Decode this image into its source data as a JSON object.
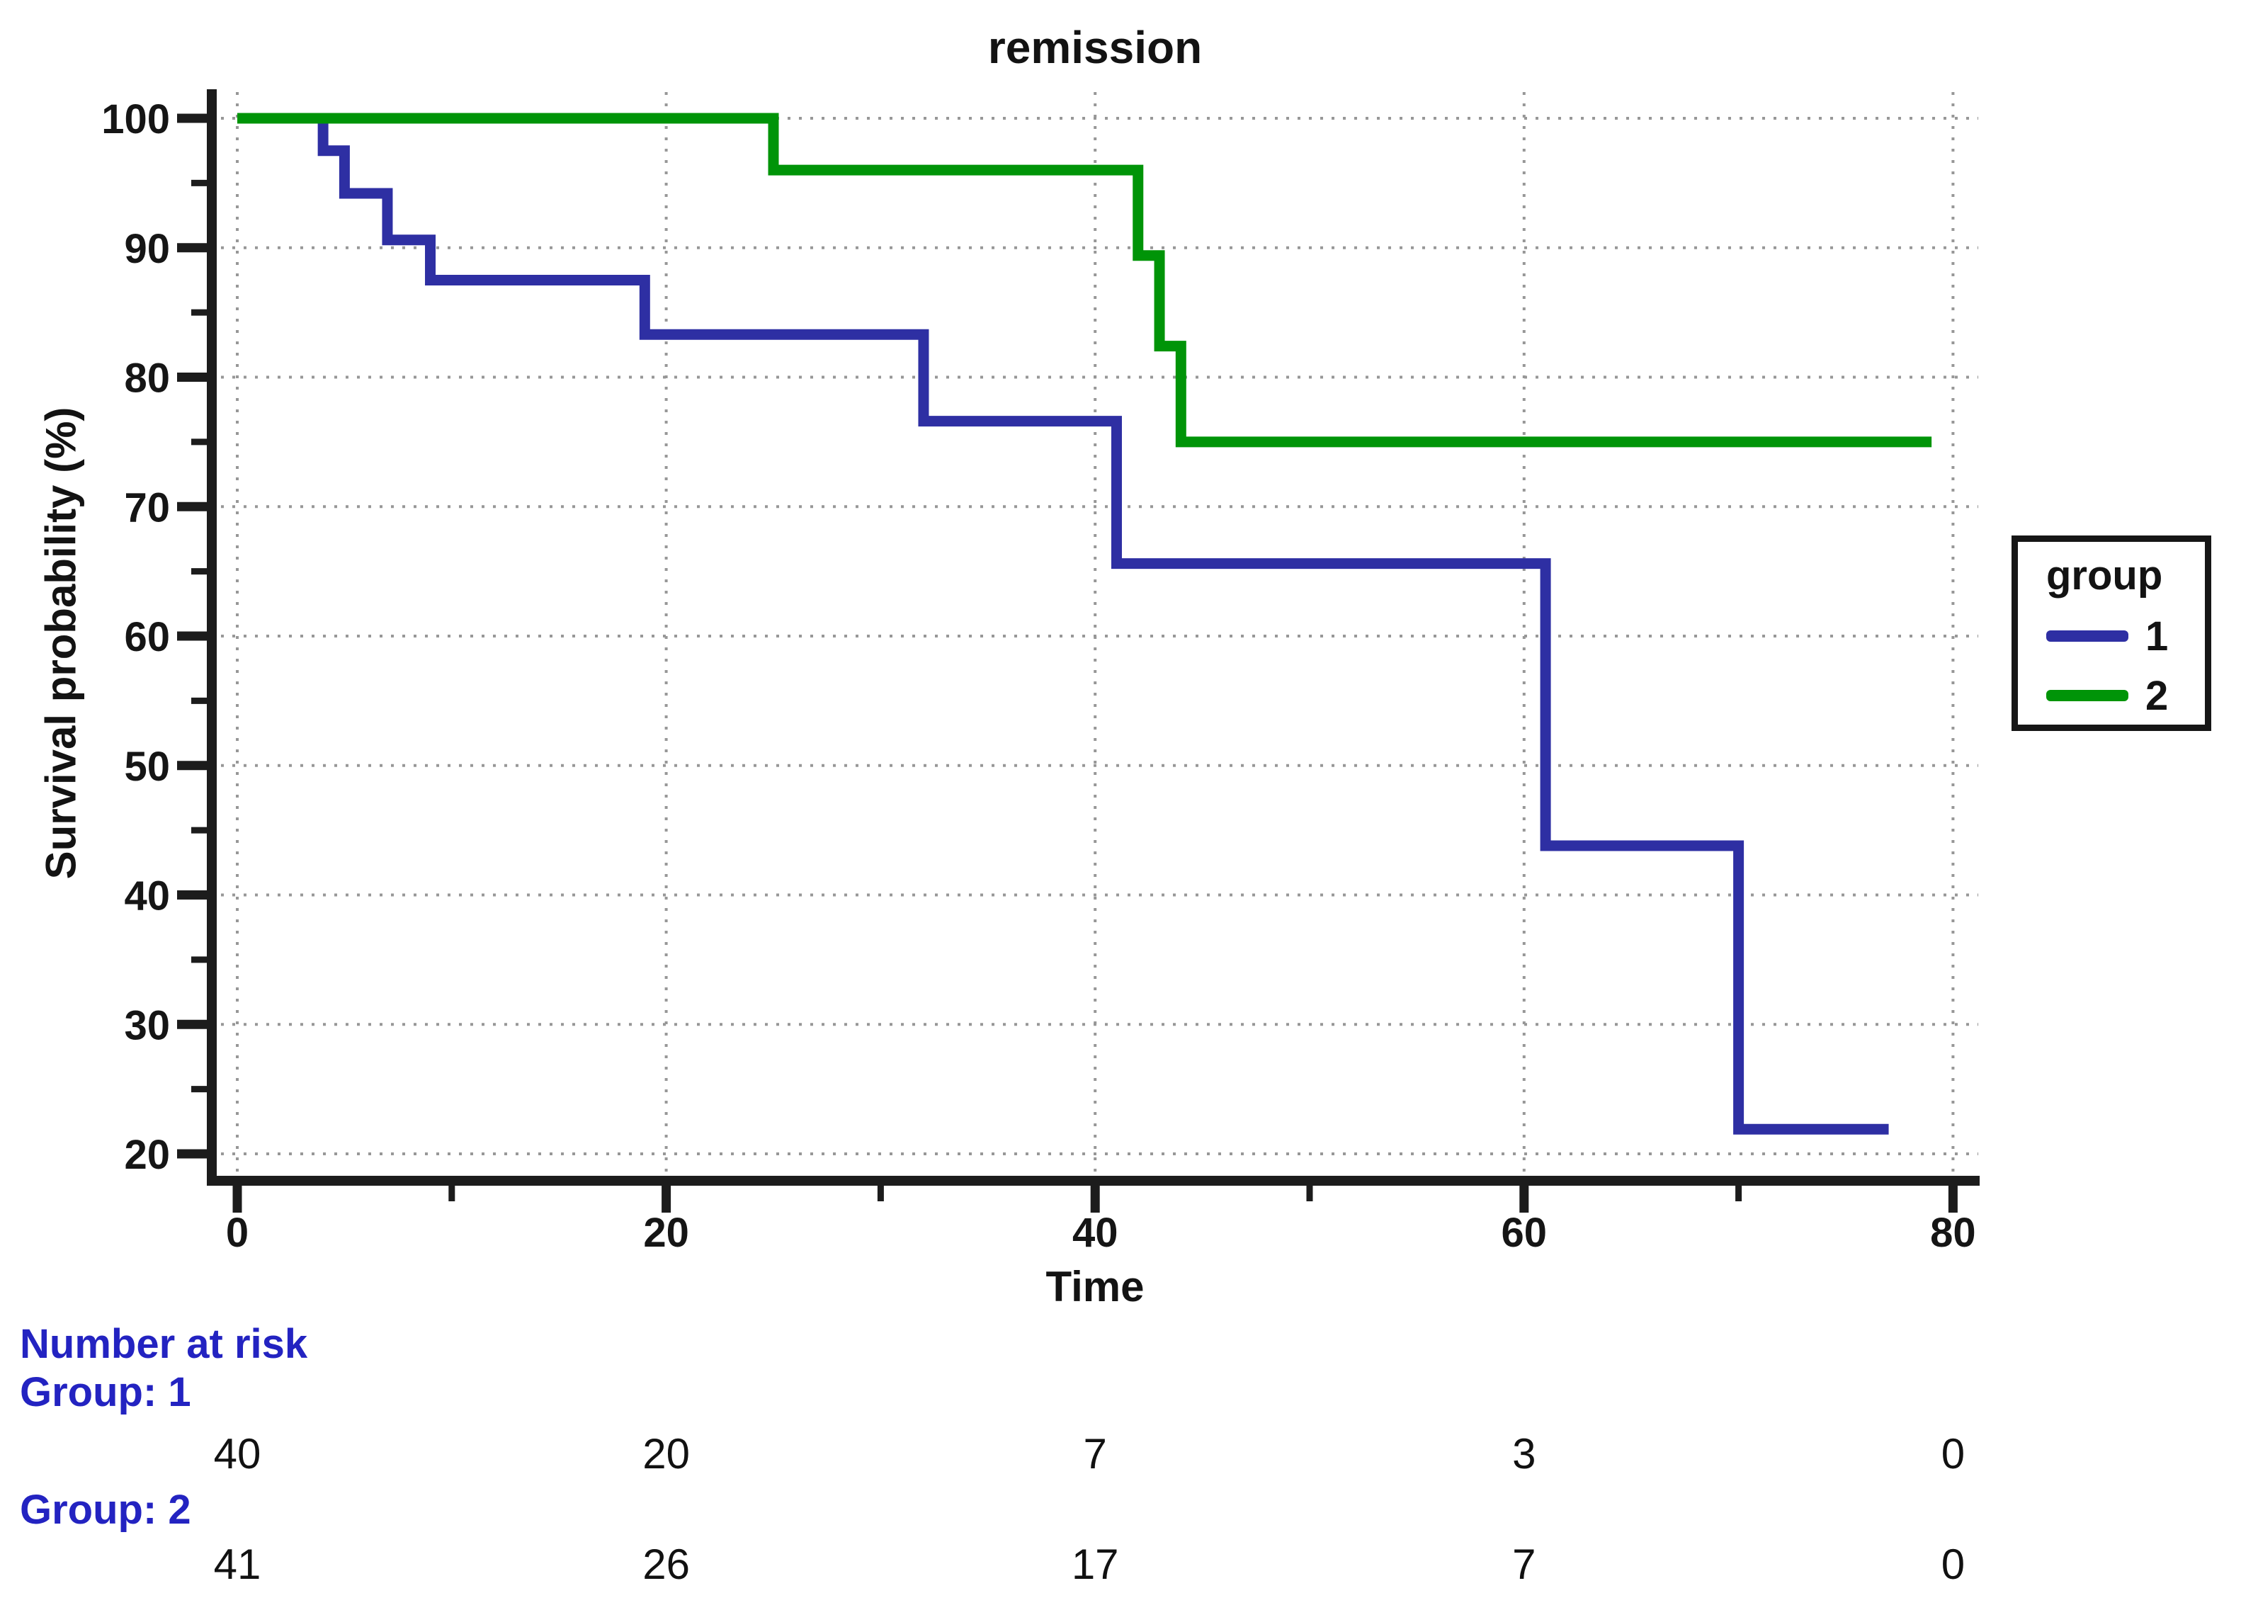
{
  "title": "remission",
  "chart_data": {
    "type": "line",
    "subtype": "kaplan-meier-step-survival",
    "title": "remission",
    "xlabel": "Time",
    "ylabel": "Survival probability (%)",
    "xlim": [
      0,
      80
    ],
    "ylim": [
      20,
      100
    ],
    "grid": "dotted",
    "legend_position": "right",
    "x_major_ticks": [
      0,
      20,
      40,
      60,
      80
    ],
    "x_minor_ticks": [
      10,
      30,
      50,
      70
    ],
    "y_major_ticks": [
      20,
      30,
      40,
      50,
      60,
      70,
      80,
      90,
      100
    ],
    "y_minor_ticks": [
      25,
      35,
      45,
      55,
      65,
      75,
      85,
      95
    ],
    "x_gridlines": [
      0,
      20,
      40,
      60,
      80
    ],
    "y_gridlines": [
      20,
      30,
      40,
      50,
      60,
      70,
      80,
      90,
      100
    ],
    "series": [
      {
        "name": "1",
        "color": "#2e2fa3",
        "end_time": 77,
        "steps": [
          [
            0,
            100
          ],
          [
            4,
            97.5
          ],
          [
            5,
            94.2
          ],
          [
            7,
            90.6
          ],
          [
            9,
            87.5
          ],
          [
            19,
            83.3
          ],
          [
            32,
            76.6
          ],
          [
            41,
            65.6
          ],
          [
            61,
            43.8
          ],
          [
            70,
            21.9
          ]
        ]
      },
      {
        "name": "2",
        "color": "#009408",
        "end_time": 79,
        "steps": [
          [
            0,
            100
          ],
          [
            25,
            96.0
          ],
          [
            42,
            89.4
          ],
          [
            43,
            82.4
          ],
          [
            44,
            75.0
          ]
        ]
      }
    ]
  },
  "legend": {
    "title": "group",
    "items": [
      {
        "label": "1",
        "color": "#2e2fa3"
      },
      {
        "label": "2",
        "color": "#009408"
      }
    ]
  },
  "risk_table": {
    "header": "Number at risk",
    "times": [
      0,
      20,
      40,
      60,
      80
    ],
    "groups": [
      {
        "label": "Group: 1",
        "counts": [
          "40",
          "20",
          "7",
          "3",
          "0"
        ]
      },
      {
        "label": "Group: 2",
        "counts": [
          "41",
          "26",
          "17",
          "7",
          "0"
        ]
      }
    ]
  },
  "colors": {
    "series1": "#2e2fa3",
    "series2": "#009408",
    "risk_label": "#2323c1",
    "risk_count": "#111111",
    "axis": "#1c1c1c",
    "gridline": "#979797",
    "background": "#ffffff"
  }
}
